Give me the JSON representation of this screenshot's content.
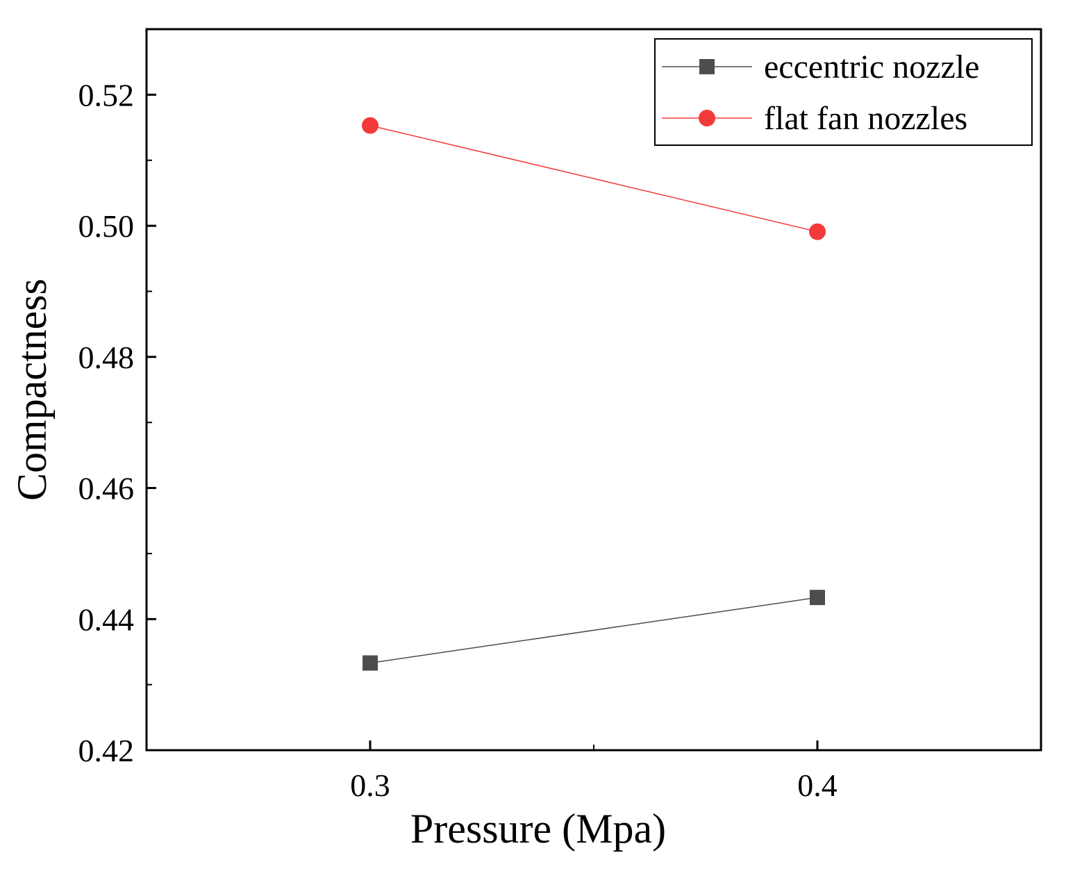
{
  "chart_data": {
    "type": "line",
    "title": "",
    "xlabel": "Pressure (Mpa)",
    "ylabel": "Compactness",
    "x": [
      0.3,
      0.4
    ],
    "xticks": [
      "0.3",
      "0.4"
    ],
    "xlim": [
      0.25,
      0.45
    ],
    "ylim": [
      0.42,
      0.53
    ],
    "yticks": [
      "0.42",
      "0.44",
      "0.46",
      "0.48",
      "0.50",
      "0.52"
    ],
    "legend_position": "top-right",
    "grid": false,
    "series": [
      {
        "name": "eccentric nozzle",
        "marker": "square",
        "color": "#4d4d4d",
        "values": [
          0.4333,
          0.4433
        ]
      },
      {
        "name": "flat fan nozzles",
        "marker": "circle",
        "color": "#f23a3a",
        "values": [
          0.5153,
          0.4991
        ]
      }
    ]
  }
}
